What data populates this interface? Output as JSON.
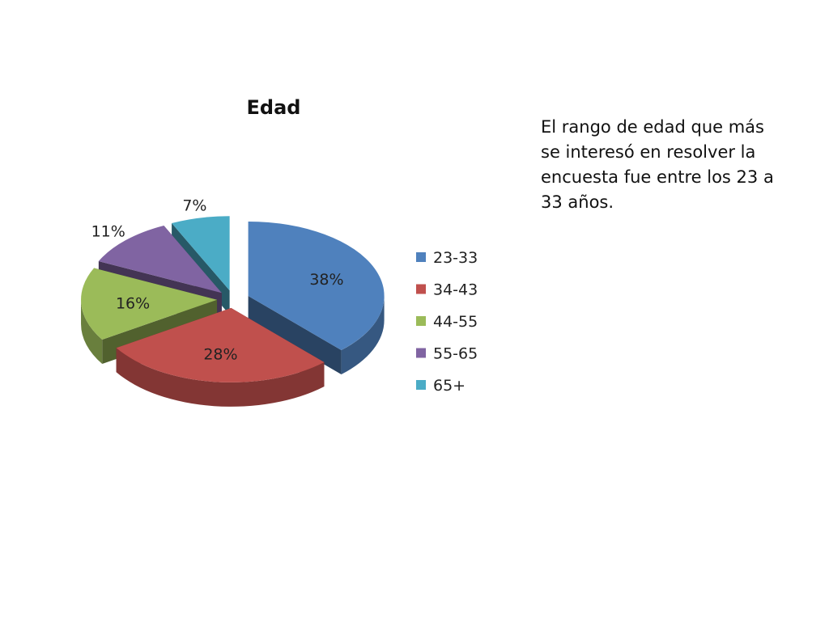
{
  "note": "El rango de edad que más se interesó en resolver la encuesta fue entre los 23 a 33 años.",
  "chart_data": {
    "type": "pie",
    "title": "Edad",
    "categories": [
      "23-33",
      "34-43",
      "44-55",
      "55-65",
      "65+"
    ],
    "values": [
      38,
      28,
      16,
      11,
      7
    ],
    "labels": [
      "38%",
      "28%",
      "16%",
      "11%",
      "7%"
    ],
    "colors": [
      "#4F81BD",
      "#C0504D",
      "#9BBB59",
      "#8064A2",
      "#4BACC6"
    ],
    "legend": "right",
    "style": "3d-exploded"
  }
}
